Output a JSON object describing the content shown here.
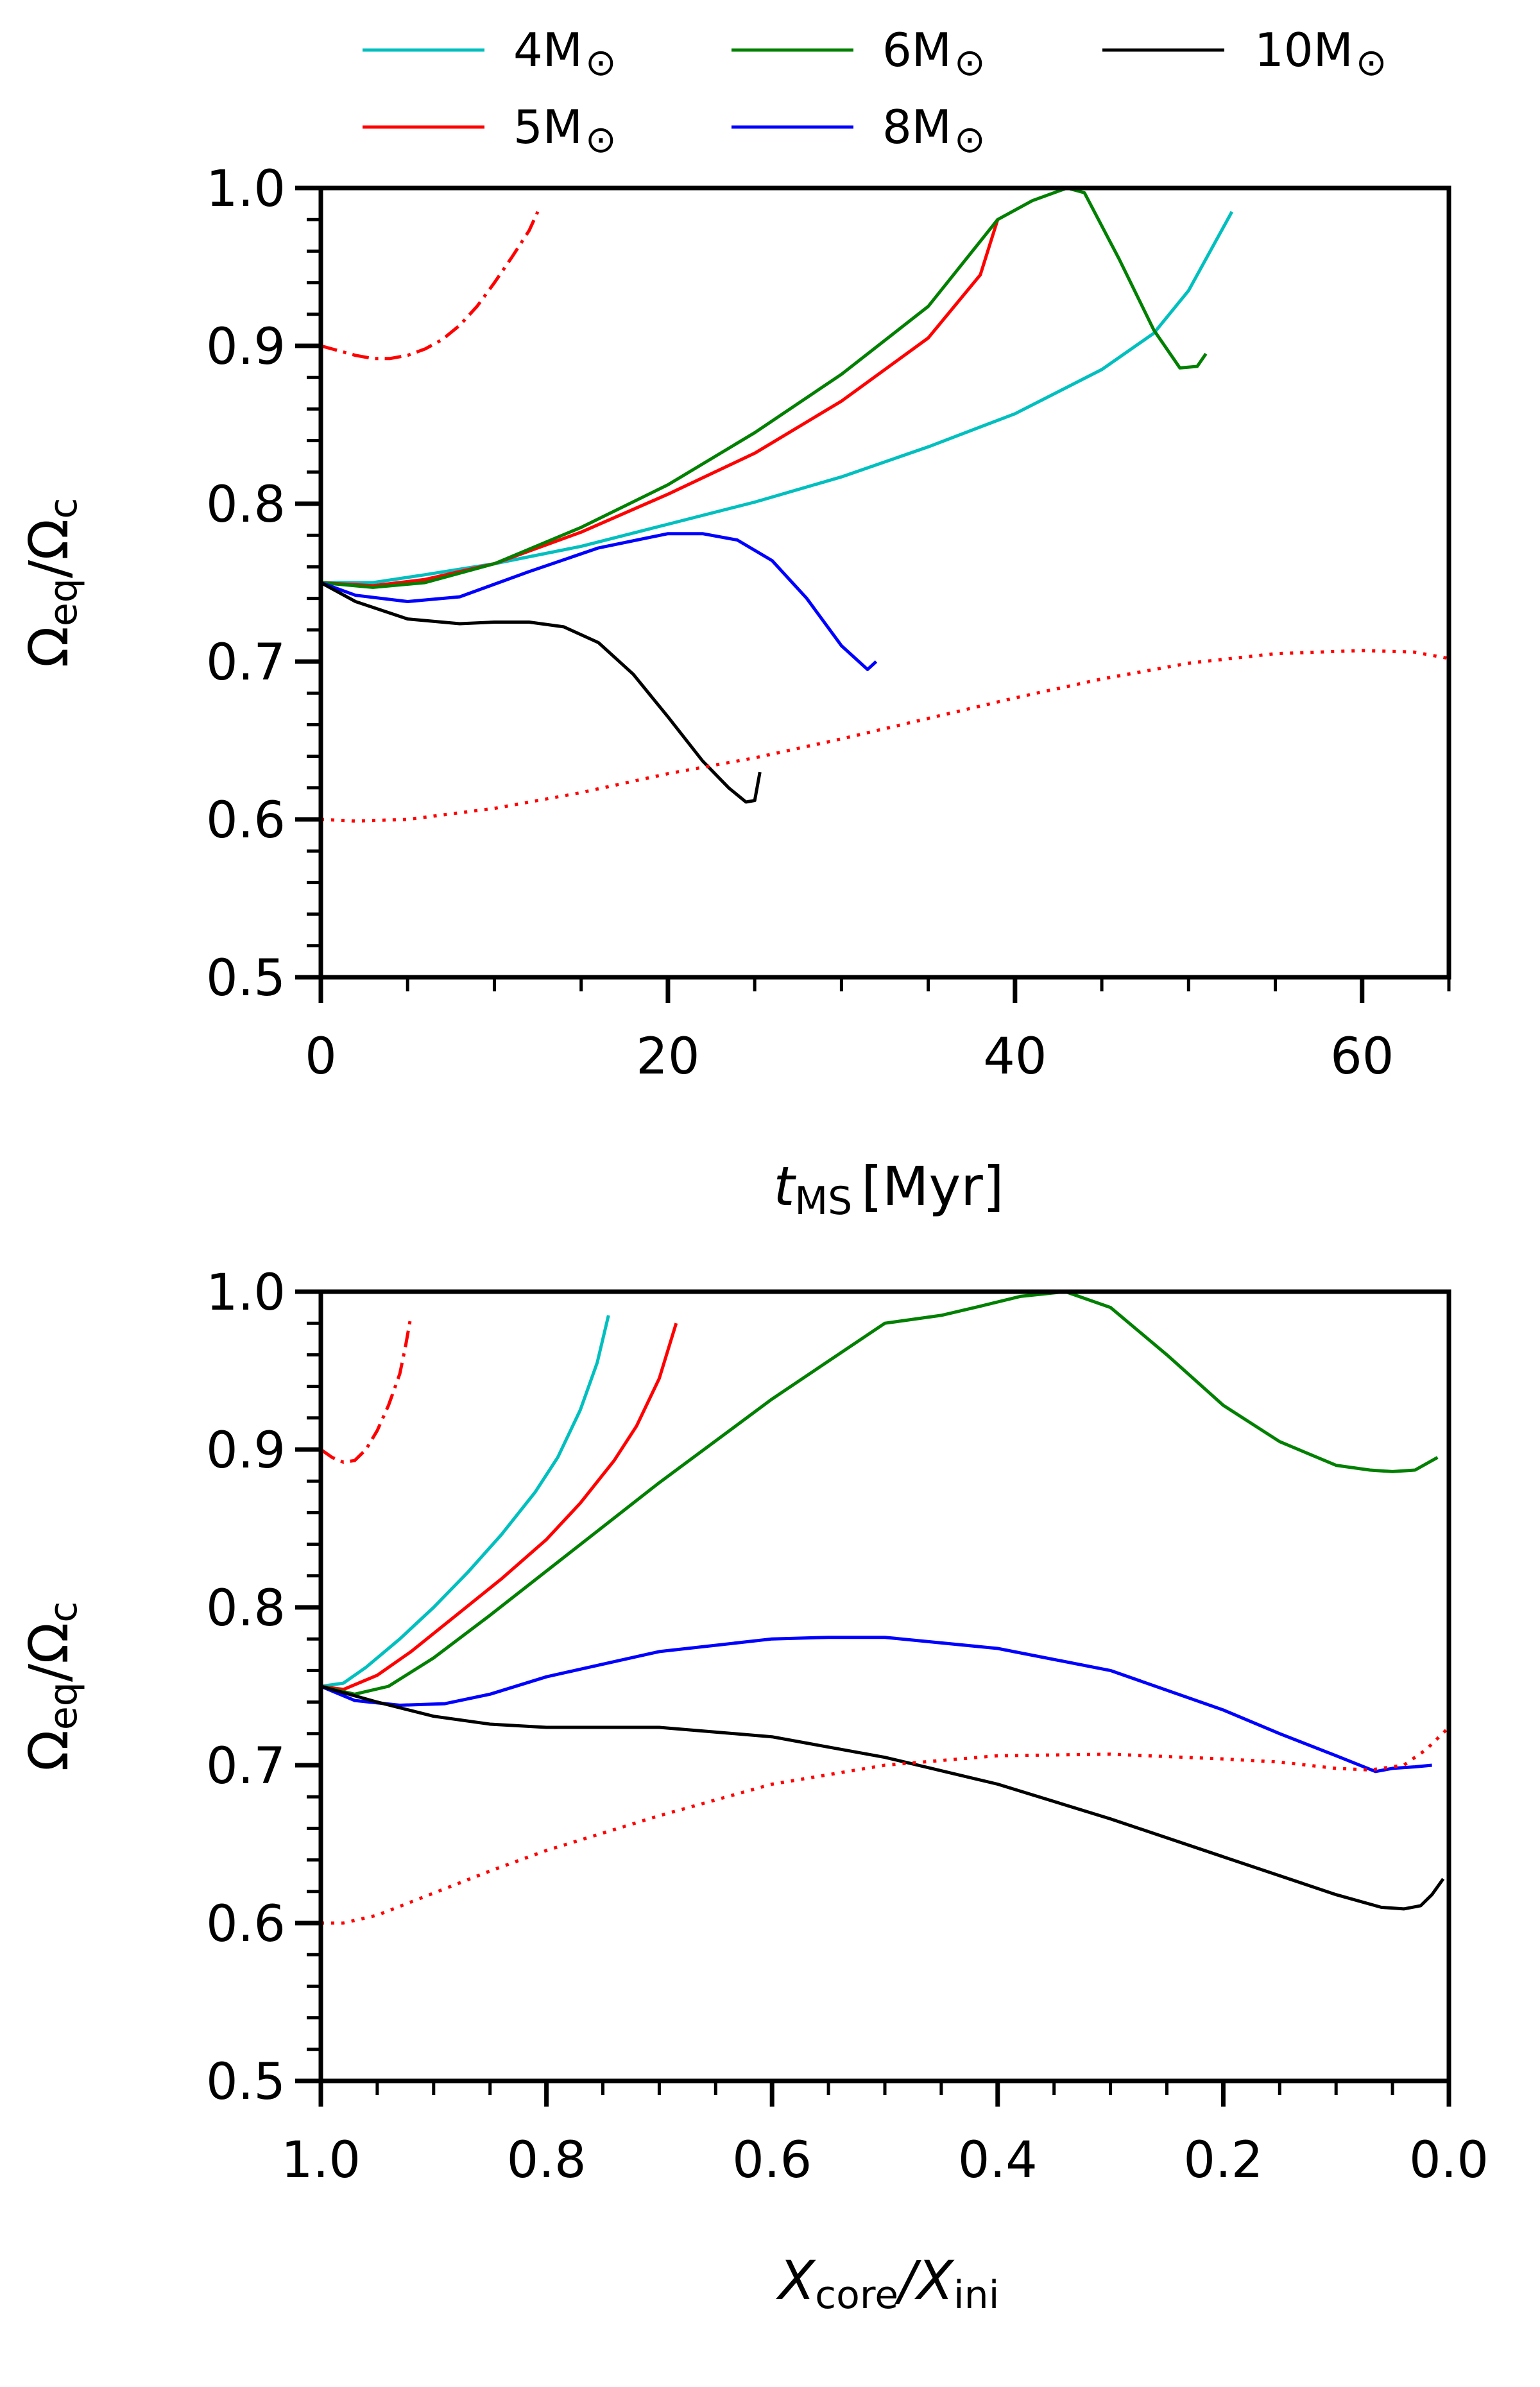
{
  "legend": [
    {
      "key": "m4",
      "label": "4M",
      "sub": "⊙",
      "color": "#00bfbf"
    },
    {
      "key": "m5",
      "label": "5M",
      "sub": "⊙",
      "color": "#ff0000"
    },
    {
      "key": "m6",
      "label": "6M",
      "sub": "⊙",
      "color": "#008000"
    },
    {
      "key": "m8",
      "label": "8M",
      "sub": "⊙",
      "color": "#0000ff"
    },
    {
      "key": "m10",
      "label": "10M",
      "sub": "⊙",
      "color": "#000000"
    }
  ],
  "chart_data": [
    {
      "type": "line",
      "xlabel": {
        "main": "t",
        "sub": "MS",
        "unit": "[Myr]"
      },
      "ylabel": {
        "a": "Ω",
        "a_sub": "eq",
        "b": "/Ω",
        "b_sub": "c"
      },
      "xlim": [
        0,
        65
      ],
      "ylim": [
        0.5,
        1.0
      ],
      "x_ticks": [
        0,
        20,
        40,
        60
      ],
      "x_tick_labels": [
        "0",
        "20",
        "40",
        "60"
      ],
      "x_minor_step": 5,
      "y_ticks": [
        0.5,
        0.6,
        0.7,
        0.8,
        0.9,
        1.0
      ],
      "y_tick_labels": [
        "0.5",
        "0.6",
        "0.7",
        "0.8",
        "0.9",
        "1.0"
      ],
      "y_minor_step": 0.02,
      "series": [
        {
          "key": "m4",
          "name": "4M⊙",
          "color": "#00bfbf",
          "style": "solid",
          "x": [
            0,
            3,
            6,
            10,
            15,
            20,
            25,
            30,
            35,
            40,
            45,
            48,
            50,
            52.5
          ],
          "y": [
            0.75,
            0.75,
            0.755,
            0.762,
            0.773,
            0.787,
            0.801,
            0.817,
            0.836,
            0.857,
            0.885,
            0.908,
            0.935,
            0.985
          ]
        },
        {
          "key": "m5",
          "name": "5M⊙",
          "color": "#ff0000",
          "style": "solid",
          "x": [
            0,
            3,
            6,
            10,
            15,
            20,
            25,
            30,
            35,
            38,
            39
          ],
          "y": [
            0.75,
            0.748,
            0.752,
            0.762,
            0.782,
            0.806,
            0.832,
            0.865,
            0.905,
            0.945,
            0.98
          ]
        },
        {
          "key": "m6",
          "name": "6M⊙",
          "color": "#008000",
          "style": "solid",
          "x": [
            0,
            3,
            6,
            10,
            15,
            20,
            25,
            30,
            35,
            39,
            41,
            43,
            44,
            46,
            48,
            49.5,
            50.5,
            51
          ],
          "y": [
            0.75,
            0.747,
            0.75,
            0.762,
            0.785,
            0.812,
            0.845,
            0.882,
            0.925,
            0.98,
            0.992,
            1.0,
            0.997,
            0.955,
            0.91,
            0.886,
            0.887,
            0.895
          ]
        },
        {
          "key": "m8",
          "name": "8M⊙",
          "color": "#0000ff",
          "style": "solid",
          "x": [
            0,
            2,
            5,
            8,
            12,
            16,
            20,
            22,
            24,
            26,
            28,
            30,
            31.5,
            32
          ],
          "y": [
            0.75,
            0.742,
            0.738,
            0.741,
            0.757,
            0.772,
            0.781,
            0.781,
            0.777,
            0.764,
            0.74,
            0.71,
            0.695,
            0.7
          ]
        },
        {
          "key": "m10",
          "name": "10M⊙",
          "color": "#000000",
          "style": "solid",
          "x": [
            0,
            2,
            5,
            8,
            10,
            12,
            14,
            16,
            18,
            20,
            22,
            23.5,
            24.5,
            25,
            25.3
          ],
          "y": [
            0.75,
            0.738,
            0.727,
            0.724,
            0.725,
            0.725,
            0.722,
            0.712,
            0.692,
            0.665,
            0.637,
            0.62,
            0.611,
            0.612,
            0.63
          ]
        },
        {
          "key": "m5-dashdot",
          "name": "5M⊙ (dash-dot)",
          "color": "#ff0000",
          "style": "dashdot",
          "x": [
            0,
            1,
            2,
            3,
            4,
            5,
            6,
            7,
            8,
            9,
            10,
            11,
            12,
            12.5
          ],
          "y": [
            0.9,
            0.897,
            0.894,
            0.892,
            0.892,
            0.894,
            0.898,
            0.904,
            0.913,
            0.925,
            0.94,
            0.956,
            0.973,
            0.985
          ]
        },
        {
          "key": "m5-dotted",
          "name": "5M⊙ (dotted)",
          "color": "#ff0000",
          "style": "dotted",
          "x": [
            0,
            2,
            5,
            10,
            15,
            20,
            25,
            30,
            35,
            40,
            45,
            50,
            55,
            60,
            63,
            65
          ],
          "y": [
            0.6,
            0.599,
            0.6,
            0.607,
            0.617,
            0.629,
            0.639,
            0.651,
            0.664,
            0.677,
            0.689,
            0.699,
            0.705,
            0.707,
            0.706,
            0.702
          ]
        }
      ]
    },
    {
      "type": "line",
      "xlabel": {
        "a": "X",
        "a_sub": "core",
        "b": "/X",
        "b_sub": "ini"
      },
      "ylabel": {
        "a": "Ω",
        "a_sub": "eq",
        "b": "/Ω",
        "b_sub": "c"
      },
      "xlim": [
        1.0,
        0.0
      ],
      "ylim": [
        0.5,
        1.0
      ],
      "x_ticks": [
        1.0,
        0.8,
        0.6,
        0.4,
        0.2,
        0.0
      ],
      "x_tick_labels": [
        "1.0",
        "0.8",
        "0.6",
        "0.4",
        "0.2",
        "0.0"
      ],
      "x_minor_step": 0.05,
      "y_ticks": [
        0.5,
        0.6,
        0.7,
        0.8,
        0.9,
        1.0
      ],
      "y_tick_labels": [
        "0.5",
        "0.6",
        "0.7",
        "0.8",
        "0.9",
        "1.0"
      ],
      "y_minor_step": 0.02,
      "series": [
        {
          "key": "m4",
          "name": "4M⊙",
          "color": "#00bfbf",
          "style": "solid",
          "x": [
            1.0,
            0.98,
            0.96,
            0.93,
            0.9,
            0.87,
            0.84,
            0.81,
            0.79,
            0.77,
            0.755,
            0.745
          ],
          "y": [
            0.75,
            0.752,
            0.762,
            0.78,
            0.8,
            0.822,
            0.846,
            0.873,
            0.895,
            0.925,
            0.955,
            0.985
          ]
        },
        {
          "key": "m5",
          "name": "5M⊙",
          "color": "#ff0000",
          "style": "solid",
          "x": [
            1.0,
            0.98,
            0.95,
            0.92,
            0.88,
            0.84,
            0.8,
            0.77,
            0.74,
            0.72,
            0.7,
            0.685
          ],
          "y": [
            0.75,
            0.748,
            0.757,
            0.772,
            0.795,
            0.818,
            0.843,
            0.866,
            0.893,
            0.915,
            0.945,
            0.98
          ]
        },
        {
          "key": "m6",
          "name": "6M⊙",
          "color": "#008000",
          "style": "solid",
          "x": [
            1.0,
            0.97,
            0.94,
            0.9,
            0.85,
            0.8,
            0.7,
            0.6,
            0.5,
            0.45,
            0.42,
            0.38,
            0.34,
            0.3,
            0.25,
            0.2,
            0.15,
            0.1,
            0.07,
            0.05,
            0.03,
            0.01
          ],
          "y": [
            0.75,
            0.745,
            0.75,
            0.768,
            0.795,
            0.823,
            0.879,
            0.932,
            0.98,
            0.985,
            0.99,
            0.997,
            1.0,
            0.99,
            0.96,
            0.928,
            0.905,
            0.89,
            0.887,
            0.886,
            0.887,
            0.895
          ]
        },
        {
          "key": "m8",
          "name": "8M⊙",
          "color": "#0000ff",
          "style": "solid",
          "x": [
            1.0,
            0.97,
            0.93,
            0.89,
            0.85,
            0.8,
            0.7,
            0.6,
            0.55,
            0.5,
            0.4,
            0.3,
            0.2,
            0.15,
            0.1,
            0.065,
            0.05,
            0.03,
            0.015
          ],
          "y": [
            0.75,
            0.741,
            0.738,
            0.739,
            0.745,
            0.756,
            0.772,
            0.78,
            0.781,
            0.781,
            0.774,
            0.76,
            0.735,
            0.72,
            0.706,
            0.696,
            0.698,
            0.699,
            0.7
          ]
        },
        {
          "key": "m10",
          "name": "10M⊙",
          "color": "#000000",
          "style": "solid",
          "x": [
            1.0,
            0.95,
            0.9,
            0.85,
            0.8,
            0.7,
            0.6,
            0.5,
            0.4,
            0.3,
            0.2,
            0.1,
            0.06,
            0.04,
            0.025,
            0.015,
            0.005
          ],
          "y": [
            0.75,
            0.74,
            0.731,
            0.726,
            0.724,
            0.724,
            0.718,
            0.705,
            0.688,
            0.666,
            0.642,
            0.618,
            0.61,
            0.609,
            0.611,
            0.618,
            0.628
          ]
        },
        {
          "key": "m5-dashdot",
          "name": "5M⊙ (dash-dot)",
          "color": "#ff0000",
          "style": "dashdot",
          "x": [
            1.0,
            0.99,
            0.98,
            0.97,
            0.96,
            0.95,
            0.94,
            0.93,
            0.925,
            0.92
          ],
          "y": [
            0.9,
            0.895,
            0.892,
            0.893,
            0.9,
            0.912,
            0.928,
            0.948,
            0.965,
            0.985
          ]
        },
        {
          "key": "m5-dotted",
          "name": "5M⊙ (dotted)",
          "color": "#ff0000",
          "style": "dotted",
          "x": [
            1.0,
            0.98,
            0.95,
            0.9,
            0.85,
            0.8,
            0.7,
            0.6,
            0.5,
            0.4,
            0.3,
            0.2,
            0.15,
            0.1,
            0.07,
            0.04,
            0.02,
            0.0
          ],
          "y": [
            0.6,
            0.6,
            0.605,
            0.619,
            0.633,
            0.646,
            0.668,
            0.688,
            0.7,
            0.706,
            0.707,
            0.704,
            0.702,
            0.698,
            0.697,
            0.7,
            0.71,
            0.724
          ]
        }
      ]
    }
  ]
}
